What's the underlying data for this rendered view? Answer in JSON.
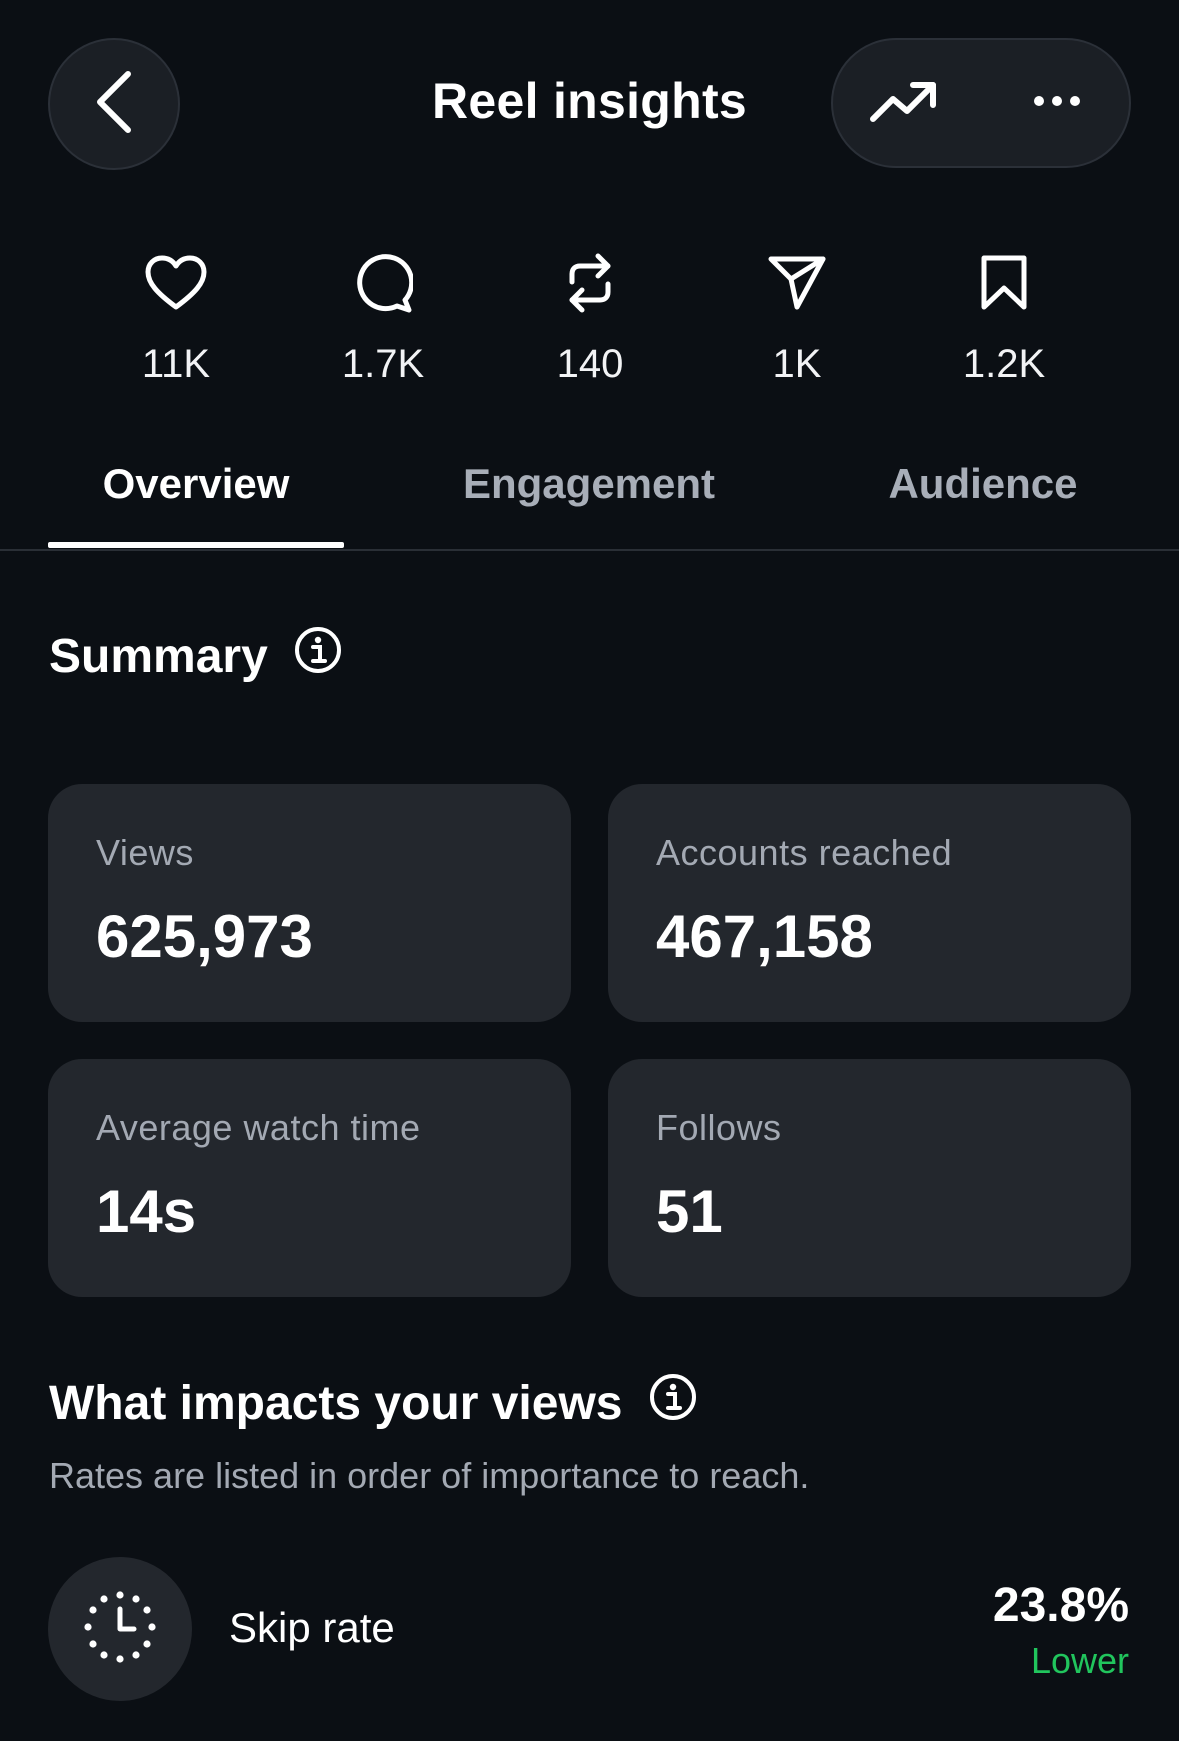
{
  "header": {
    "title": "Reel insights"
  },
  "stats": [
    {
      "icon": "heart-icon",
      "value": "11K"
    },
    {
      "icon": "comment-icon",
      "value": "1.7K"
    },
    {
      "icon": "repost-icon",
      "value": "140"
    },
    {
      "icon": "share-icon",
      "value": "1K"
    },
    {
      "icon": "bookmark-icon",
      "value": "1.2K"
    }
  ],
  "tabs": [
    {
      "label": "Overview",
      "active": true
    },
    {
      "label": "Engagement",
      "active": false
    },
    {
      "label": "Audience",
      "active": false
    }
  ],
  "summary": {
    "title": "Summary",
    "cards": [
      {
        "label": "Views",
        "value": "625,973"
      },
      {
        "label": "Accounts reached",
        "value": "467,158"
      },
      {
        "label": "Average watch time",
        "value": "14s"
      },
      {
        "label": "Follows",
        "value": "51"
      }
    ]
  },
  "impacts": {
    "title": "What impacts your views",
    "subtitle": "Rates are listed in order of importance to reach.",
    "rows": [
      {
        "icon": "stopwatch-icon",
        "label": "Skip rate",
        "value": "23.8%",
        "comparison": "Lower"
      }
    ]
  },
  "colors": {
    "background": "#0b0f14",
    "card": "#23272d",
    "positive": "#21c55d"
  }
}
